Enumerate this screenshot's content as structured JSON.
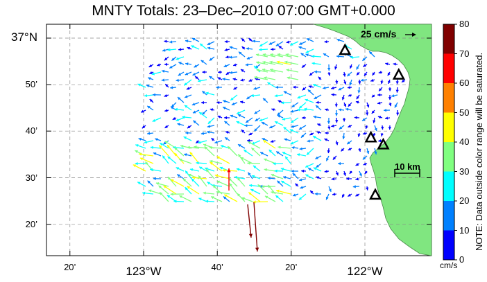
{
  "title": "MNTY Totals: 23–Dec–2010 07:00 GMT+0.000",
  "lat_labels": [
    {
      "text": "37°N",
      "lat": 37.0,
      "big": true
    },
    {
      "text": "50’",
      "lat": 36.833,
      "big": false
    },
    {
      "text": "40’",
      "lat": 36.667,
      "big": false
    },
    {
      "text": "30’",
      "lat": 36.5,
      "big": false
    },
    {
      "text": "20’",
      "lat": 36.333,
      "big": false
    }
  ],
  "lon_labels": [
    {
      "text": "20’",
      "lon": -123.333,
      "big": false
    },
    {
      "text": "123°W",
      "lon": -123.0,
      "big": true
    },
    {
      "text": "40’",
      "lon": -122.667,
      "big": false
    },
    {
      "text": "20’",
      "lon": -122.333,
      "big": false
    },
    {
      "text": "122°W",
      "lon": -122.0,
      "big": true
    }
  ],
  "scale_label": "25 cm/s",
  "km_label": "10 km",
  "colorbar": {
    "ticks": [
      "80",
      "70",
      "60",
      "50",
      "40",
      "30",
      "20",
      "10",
      "0"
    ],
    "colors": [
      "#0000ff",
      "#0080ff",
      "#00ffff",
      "#80ff80",
      "#ffff00",
      "#ff8000",
      "#ff0000",
      "#800000"
    ],
    "unit": "cm/s",
    "note": "NOTE: Data outside color range will be saturated."
  },
  "colors": {
    "land": "#80e680",
    "grid": "#888888",
    "site_marker": "#000000"
  },
  "sites": [
    {
      "lon": -122.09,
      "lat": 36.955
    },
    {
      "lon": -121.847,
      "lat": 36.867
    },
    {
      "lon": -121.973,
      "lat": 36.642
    },
    {
      "lon": -121.917,
      "lat": 36.617
    },
    {
      "lon": -121.953,
      "lat": 36.437
    }
  ]
}
